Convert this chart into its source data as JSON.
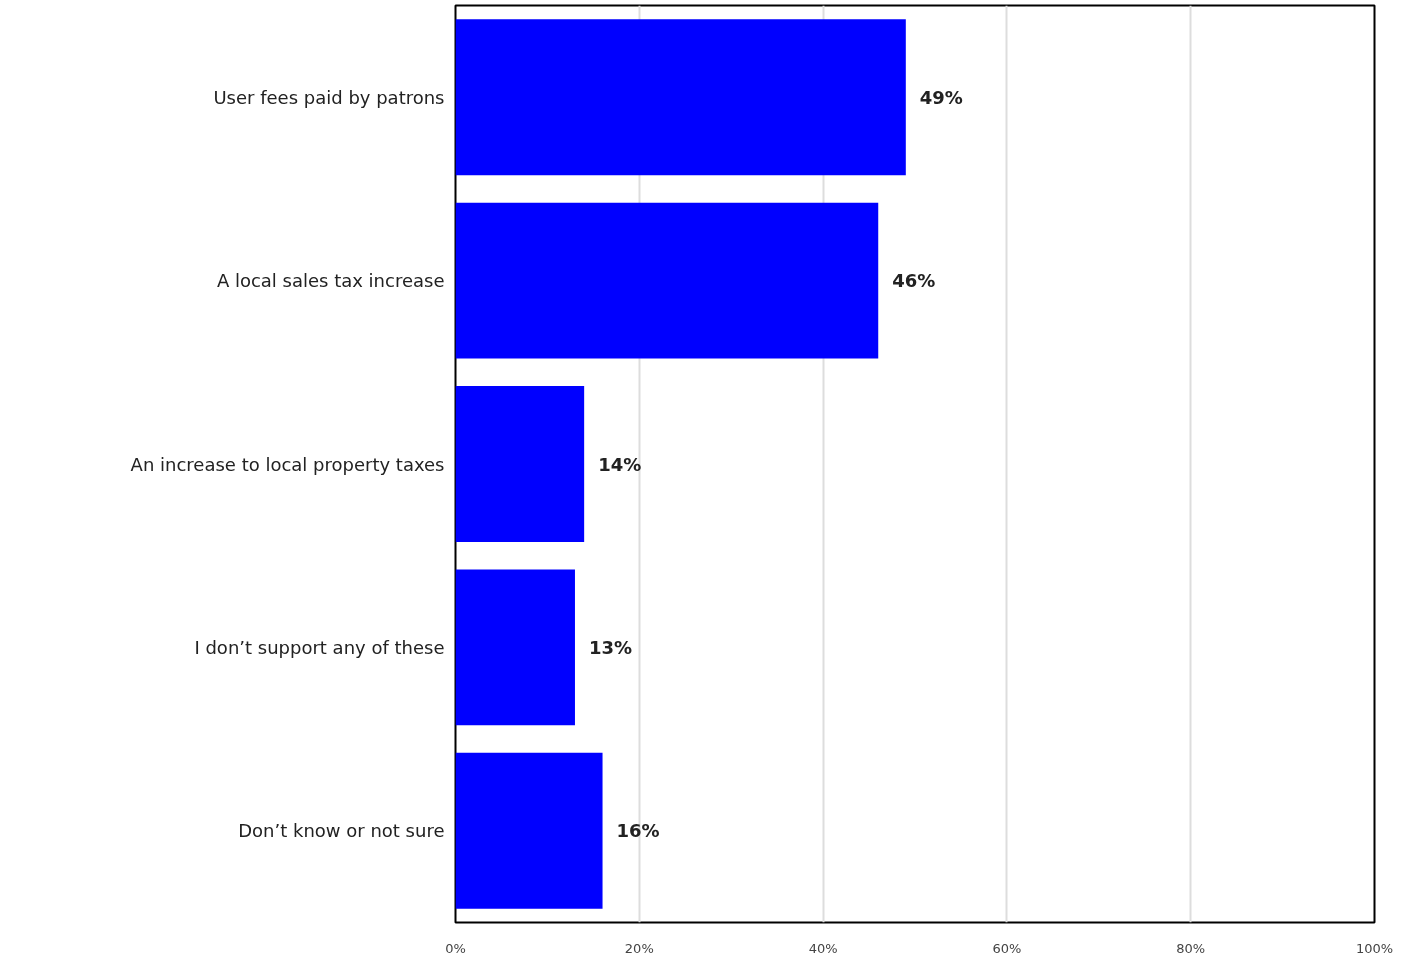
{
  "chart_data": {
    "type": "bar",
    "orientation": "horizontal",
    "categories": [
      "User fees paid by patrons",
      "A local sales tax increase",
      "An increase to local property taxes",
      "I don’t support any of these",
      "Don’t know or not sure"
    ],
    "values": [
      49,
      46,
      14,
      13,
      16
    ],
    "value_labels": [
      "49%",
      "46%",
      "14%",
      "13%",
      "16%"
    ],
    "color": "#0000ff",
    "xlim": [
      0,
      100
    ],
    "xticks": [
      {
        "value": 0,
        "label": "0%"
      },
      {
        "value": 20,
        "label": "20%"
      },
      {
        "value": 40,
        "label": "40%"
      },
      {
        "value": 60,
        "label": "60%"
      },
      {
        "value": 80,
        "label": "80%"
      },
      {
        "value": 100,
        "label": "100%"
      }
    ],
    "grid": "x"
  }
}
